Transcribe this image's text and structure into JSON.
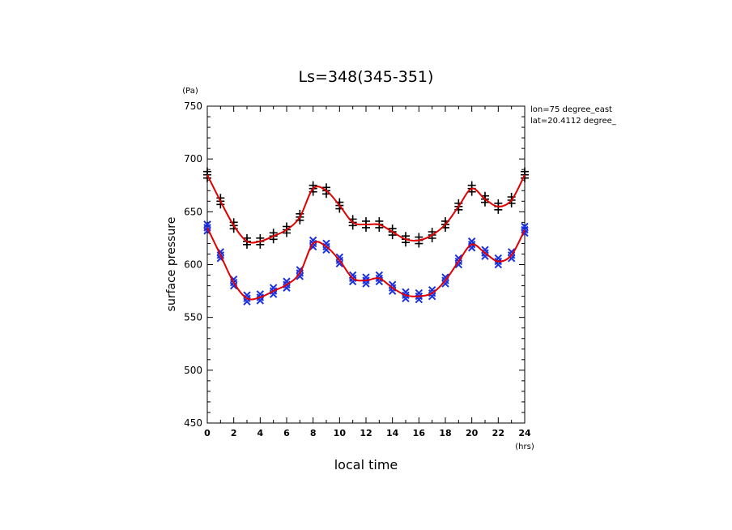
{
  "chart_data": {
    "type": "line",
    "title": "Ls=348(345-351)",
    "ylabel": "surface pressure",
    "yunit": "(Pa)",
    "xlabel": "local time",
    "xunit": "(hrs)",
    "annotations": [
      "lon=75 degree_east",
      "lat=20.4112 degree_"
    ],
    "xlim": [
      0,
      24
    ],
    "ylim": [
      450,
      750
    ],
    "xticks": [
      0,
      2,
      4,
      6,
      8,
      10,
      12,
      14,
      16,
      18,
      20,
      22,
      24
    ],
    "yticks": [
      450,
      500,
      550,
      600,
      650,
      700,
      750
    ],
    "colors": {
      "fit": "#e00000",
      "upper_markers": "#000000",
      "lower_markers": "#1a2fe0"
    },
    "series": [
      {
        "marker": "plus",
        "x": [
          0,
          1,
          2,
          3,
          4,
          5,
          6,
          7,
          8,
          9,
          10,
          11,
          12,
          13,
          14,
          15,
          16,
          17,
          18,
          19,
          20,
          21,
          22,
          23,
          24
        ],
        "values": [
          685,
          660,
          637,
          622,
          622,
          627,
          633,
          645,
          672,
          670,
          656,
          640,
          638,
          638,
          631,
          624,
          623,
          628,
          638,
          655,
          672,
          662,
          655,
          661,
          685
        ]
      },
      {
        "marker": "x",
        "x": [
          0,
          1,
          2,
          3,
          4,
          5,
          6,
          7,
          8,
          9,
          10,
          11,
          12,
          13,
          14,
          15,
          16,
          17,
          18,
          19,
          20,
          21,
          22,
          23,
          24
        ],
        "values": [
          635,
          609,
          583,
          568,
          569,
          575,
          581,
          592,
          620,
          617,
          604,
          587,
          585,
          587,
          578,
          571,
          570,
          573,
          585,
          603,
          619,
          611,
          603,
          609,
          633
        ]
      }
    ]
  }
}
